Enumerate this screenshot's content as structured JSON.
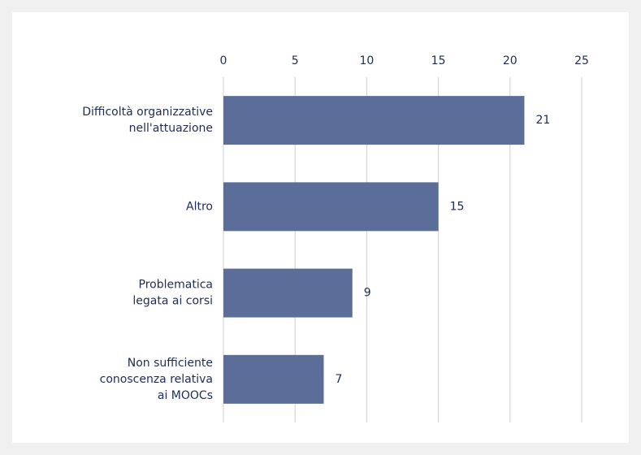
{
  "chart_data": {
    "type": "hbar",
    "categories": [
      [
        "Difficoltà organizzative",
        "nell'attuazione"
      ],
      [
        "Altro"
      ],
      [
        "Problematica",
        "legata ai corsi"
      ],
      [
        "Non sufficiente",
        "conoscenza relativa",
        "ai MOOCs"
      ]
    ],
    "values": [
      21,
      15,
      9,
      7
    ],
    "color": "#5b6d99",
    "xlim": [
      0,
      25
    ],
    "xticks": [
      0,
      5,
      10,
      15,
      20,
      25
    ],
    "grid": true
  }
}
